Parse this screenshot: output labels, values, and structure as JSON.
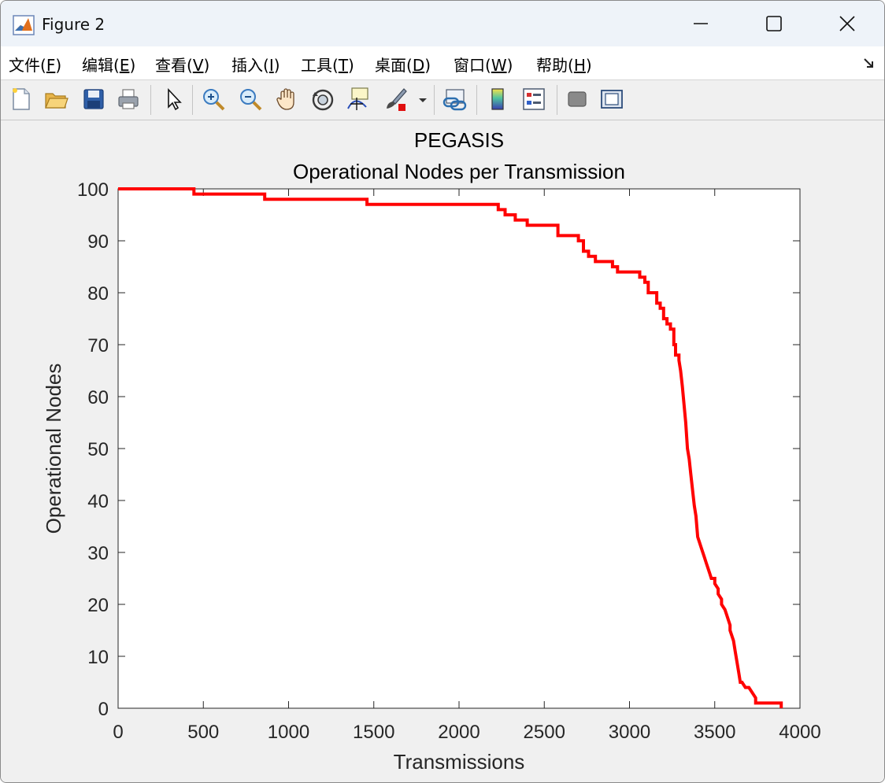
{
  "window": {
    "title": "Figure 2"
  },
  "menu": {
    "items": [
      {
        "label_pre": "文件(",
        "key": "F",
        "label_post": ")"
      },
      {
        "label_pre": "编辑(",
        "key": "E",
        "label_post": ")"
      },
      {
        "label_pre": "查看(",
        "key": "V",
        "label_post": ")"
      },
      {
        "label_pre": "插入(",
        "key": "I",
        "label_post": ")"
      },
      {
        "label_pre": "工具(",
        "key": "T",
        "label_post": ")"
      },
      {
        "label_pre": "桌面(",
        "key": "D",
        "label_post": ")"
      },
      {
        "label_pre": "窗口(",
        "key": "W",
        "label_post": ")"
      },
      {
        "label_pre": "帮助(",
        "key": "H",
        "label_post": ")"
      }
    ]
  },
  "toolbar": {
    "icons": [
      "new-file-icon",
      "open-folder-icon",
      "save-icon",
      "print-icon",
      "pointer-icon",
      "zoom-in-icon",
      "zoom-out-icon",
      "pan-hand-icon",
      "rotate-3d-icon",
      "data-cursor-icon",
      "brush-icon",
      "link-plot-icon",
      "colorbar-icon",
      "legend-icon",
      "hide-plot-tools-icon",
      "show-plot-tools-icon"
    ]
  },
  "chart_data": {
    "type": "line",
    "title": "PEGASIS",
    "subtitle": "Operational Nodes per Transmission",
    "xlabel": "Transmissions",
    "ylabel": "Operational Nodes",
    "xlim": [
      0,
      4000
    ],
    "ylim": [
      0,
      100
    ],
    "xticks": [
      0,
      500,
      1000,
      1500,
      2000,
      2500,
      3000,
      3500,
      4000
    ],
    "yticks": [
      0,
      10,
      20,
      30,
      40,
      50,
      60,
      70,
      80,
      90,
      100
    ],
    "grid": false,
    "line_color": "#ff0000",
    "series": [
      {
        "x": [
          0,
          445,
          445,
          860,
          860,
          1460,
          1460,
          2220,
          2230,
          2230,
          2270,
          2270,
          2330,
          2330,
          2400,
          2400,
          2440,
          2440,
          2570,
          2580,
          2580,
          2700,
          2700,
          2730,
          2730,
          2760,
          2760,
          2800,
          2800,
          2900,
          2900,
          2930,
          2930,
          3060,
          3060,
          3090,
          3090,
          3110,
          3110,
          3160,
          3160,
          3180,
          3180,
          3200,
          3200,
          3220,
          3220,
          3240,
          3240,
          3260,
          3260,
          3270,
          3270,
          3290,
          3290,
          3300,
          3310,
          3330,
          3340,
          3350,
          3360,
          3370,
          3380,
          3390,
          3400,
          3420,
          3430,
          3440,
          3450,
          3460,
          3470,
          3480,
          3500,
          3500,
          3520,
          3520,
          3540,
          3540,
          3560,
          3570,
          3590,
          3590,
          3610,
          3620,
          3630,
          3640,
          3650,
          3660,
          3680,
          3700,
          3720,
          3740,
          3740,
          3890,
          3890
        ],
        "y": [
          100,
          100,
          99,
          99,
          98,
          98,
          97,
          97,
          97,
          96,
          96,
          95,
          95,
          94,
          94,
          93,
          93,
          93,
          93,
          93,
          91,
          91,
          90,
          90,
          88,
          88,
          87,
          87,
          86,
          86,
          85,
          85,
          84,
          84,
          83,
          83,
          82,
          82,
          80,
          80,
          78,
          78,
          77,
          77,
          75,
          75,
          74,
          74,
          73,
          73,
          70,
          70,
          68,
          68,
          67,
          65,
          62,
          55,
          50,
          48,
          45,
          42,
          39,
          37,
          33,
          31,
          30,
          29,
          28,
          27,
          26,
          25,
          25,
          24,
          23,
          22,
          21,
          20,
          19,
          18,
          16,
          15,
          13,
          11,
          9,
          7,
          5,
          5,
          4,
          4,
          3,
          2,
          1,
          1,
          0
        ]
      }
    ]
  }
}
